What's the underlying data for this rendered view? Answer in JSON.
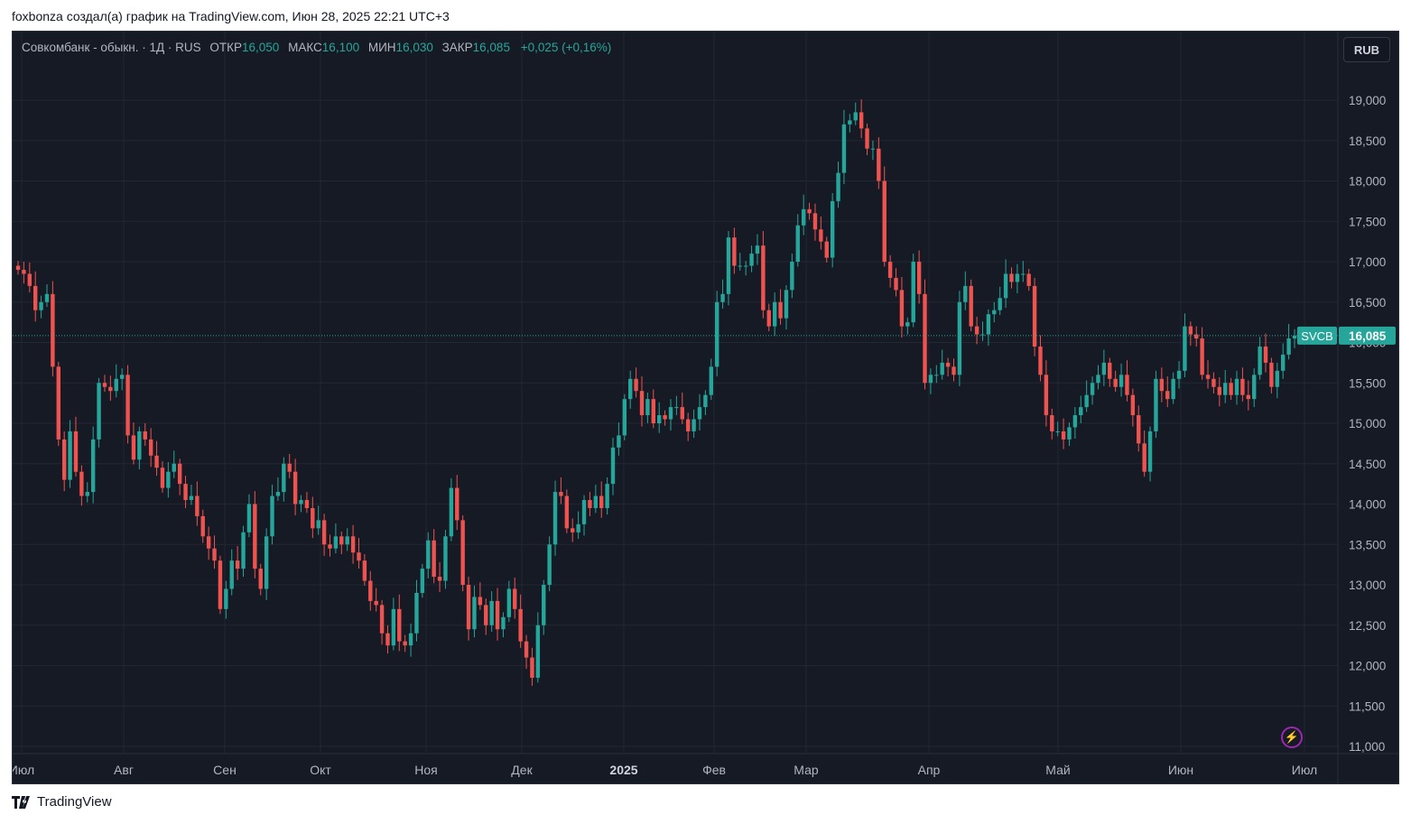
{
  "header": {
    "text": "foxbonza создал(а) график на TradingView.com, Июн 28, 2025 22:21 UTC+3"
  },
  "legend": {
    "title": "Совкомбанк - обыкн. · 1Д · RUS",
    "open_label": "ОТКР",
    "open": "16,050",
    "high_label": "МАКС",
    "high": "16,100",
    "low_label": "МИН",
    "low": "16,030",
    "close_label": "ЗАКР",
    "close": "16,085",
    "change": "+0,025 (+0,16%)"
  },
  "currency_button": "RUB",
  "price_tag": {
    "symbol": "SVCB",
    "value": "16,085"
  },
  "footer": {
    "brand": "TradingView"
  },
  "colors": {
    "up": "#26a69a",
    "down": "#ef5350",
    "background": "#161a25",
    "grid": "#232733"
  },
  "chart_data": {
    "type": "candlestick",
    "symbol": "SVCB",
    "ylim": [
      11.0,
      19.0
    ],
    "y_ticks": [
      "19,000",
      "18,500",
      "18,000",
      "17,500",
      "17,000",
      "16,500",
      "16,000",
      "15,500",
      "15,000",
      "14,500",
      "14,000",
      "13,500",
      "13,000",
      "12,500",
      "12,000",
      "11,500",
      "11,000"
    ],
    "x_ticks": [
      "Июл",
      "Авг",
      "Сен",
      "Окт",
      "Ноя",
      "Дек",
      "2025",
      "Фев",
      "Мар",
      "Апр",
      "Май",
      "Июн",
      "Июл"
    ],
    "last_price": 16.085,
    "closes": [
      16.9,
      16.85,
      16.7,
      16.4,
      16.5,
      16.6,
      15.7,
      14.8,
      14.3,
      14.9,
      14.4,
      14.1,
      14.15,
      14.8,
      15.5,
      15.45,
      15.4,
      15.55,
      15.6,
      14.85,
      14.55,
      14.9,
      14.8,
      14.6,
      14.45,
      14.2,
      14.4,
      14.5,
      14.25,
      14.05,
      14.1,
      13.85,
      13.6,
      13.45,
      13.3,
      12.7,
      12.95,
      13.3,
      13.2,
      13.65,
      14.0,
      13.2,
      12.95,
      13.6,
      14.1,
      14.15,
      14.5,
      14.4,
      14.0,
      14.05,
      13.95,
      13.7,
      13.8,
      13.5,
      13.45,
      13.6,
      13.5,
      13.6,
      13.4,
      13.3,
      13.05,
      12.8,
      12.75,
      12.4,
      12.25,
      12.7,
      12.3,
      12.25,
      12.4,
      12.9,
      13.2,
      13.55,
      13.1,
      13.05,
      13.6,
      14.2,
      13.8,
      13.0,
      12.45,
      12.85,
      12.75,
      12.5,
      12.8,
      12.45,
      12.6,
      12.95,
      12.7,
      12.3,
      12.1,
      11.85,
      12.5,
      13.0,
      13.5,
      14.15,
      14.1,
      13.7,
      13.65,
      13.75,
      14.05,
      13.95,
      14.1,
      13.95,
      14.25,
      14.7,
      14.85,
      15.3,
      15.55,
      15.4,
      15.1,
      15.3,
      15.0,
      15.1,
      15.05,
      15.2,
      15.2,
      15.05,
      14.9,
      15.05,
      15.2,
      15.35,
      15.7,
      16.5,
      16.6,
      17.3,
      16.95,
      16.95,
      16.95,
      17.1,
      17.2,
      16.4,
      16.2,
      16.5,
      16.3,
      16.65,
      17.0,
      17.45,
      17.65,
      17.6,
      17.4,
      17.25,
      17.05,
      17.75,
      18.1,
      18.7,
      18.75,
      18.85,
      18.65,
      18.4,
      18.4,
      18.0,
      17.0,
      16.8,
      16.65,
      16.2,
      16.25,
      17.0,
      16.6,
      15.5,
      15.6,
      15.6,
      15.75,
      15.7,
      15.6,
      16.5,
      16.7,
      16.2,
      16.1,
      16.1,
      16.35,
      16.4,
      16.55,
      16.85,
      16.75,
      16.85,
      16.85,
      16.7,
      15.95,
      15.6,
      15.1,
      14.9,
      14.9,
      14.8,
      14.95,
      15.1,
      15.2,
      15.35,
      15.5,
      15.6,
      15.75,
      15.55,
      15.45,
      15.6,
      15.35,
      15.1,
      14.75,
      14.4,
      14.9,
      15.55,
      15.4,
      15.3,
      15.55,
      15.65,
      16.2,
      16.1,
      16.05,
      15.6,
      15.55,
      15.45,
      15.35,
      15.5,
      15.35,
      15.55,
      15.35,
      15.3,
      15.6,
      15.95,
      15.75,
      15.45,
      15.65,
      15.85,
      16.05,
      16.085
    ],
    "x_range_note": "daily candles, Jul 2024 – Jun 2025"
  }
}
